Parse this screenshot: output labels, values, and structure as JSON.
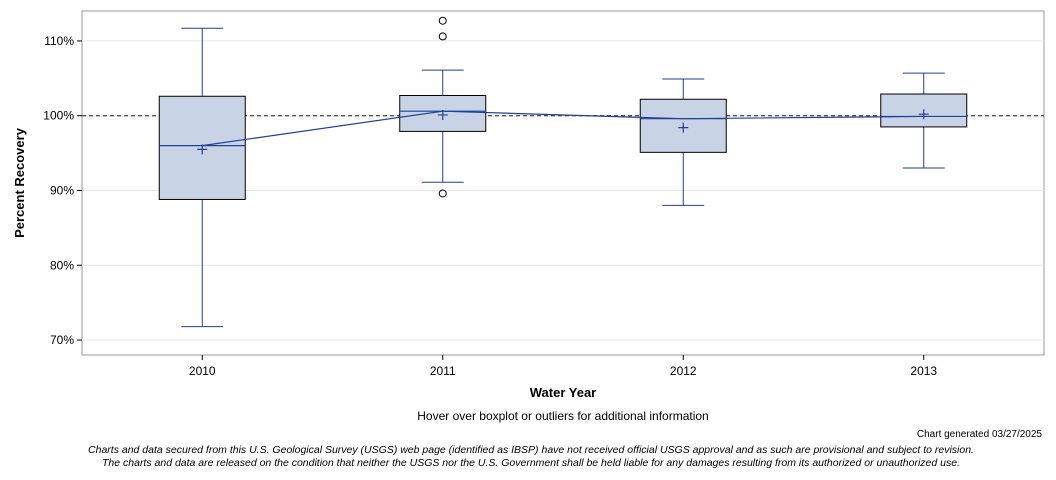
{
  "chart_data": {
    "type": "boxplot",
    "xlabel": "Water Year",
    "ylabel": "Percent Recovery",
    "ylim": [
      68,
      114
    ],
    "y_ticks": [
      70,
      80,
      90,
      100,
      110
    ],
    "y_tick_labels": [
      "70%",
      "80%",
      "90%",
      "100%",
      "110%"
    ],
    "reference_line": 100,
    "grid": true,
    "categories": [
      "2010",
      "2011",
      "2012",
      "2013"
    ],
    "boxes": [
      {
        "category": "2010",
        "whisker_low": 71.8,
        "q1": 88.8,
        "median": 96.0,
        "q3": 102.6,
        "whisker_high": 111.7,
        "mean": 95.5,
        "outliers": []
      },
      {
        "category": "2011",
        "whisker_low": 91.1,
        "q1": 97.9,
        "median": 100.6,
        "q3": 102.7,
        "whisker_high": 106.1,
        "mean": 100.1,
        "outliers": [
          112.7,
          110.6,
          89.6
        ]
      },
      {
        "category": "2012",
        "whisker_low": 88.0,
        "q1": 95.1,
        "median": 99.6,
        "q3": 102.2,
        "whisker_high": 104.9,
        "mean": 98.4,
        "outliers": []
      },
      {
        "category": "2013",
        "whisker_low": 93.0,
        "q1": 98.5,
        "median": 99.9,
        "q3": 102.9,
        "whisker_high": 105.7,
        "mean": 100.2,
        "outliers": []
      }
    ],
    "colors": {
      "box_fill": "#c8d4e6",
      "box_stroke": "#000000",
      "whisker": "#1f3f9a",
      "median_line": "#1f3f9a",
      "reference": "#555555",
      "grid": "#e6e6e6"
    }
  },
  "footer": {
    "hover_note": "Hover over boxplot or outliers for additional information",
    "generated": "Chart generated 03/27/2025",
    "disclaimer_line1": "Charts and data secured from this U.S. Geological Survey (USGS) web page (identified as IBSP) have not received official USGS approval and as such are provisional and subject to revision.",
    "disclaimer_line2": "The charts and data are released on the condition that neither the USGS nor the U.S. Government shall be held liable for any damages resulting from its authorized or unauthorized use."
  }
}
